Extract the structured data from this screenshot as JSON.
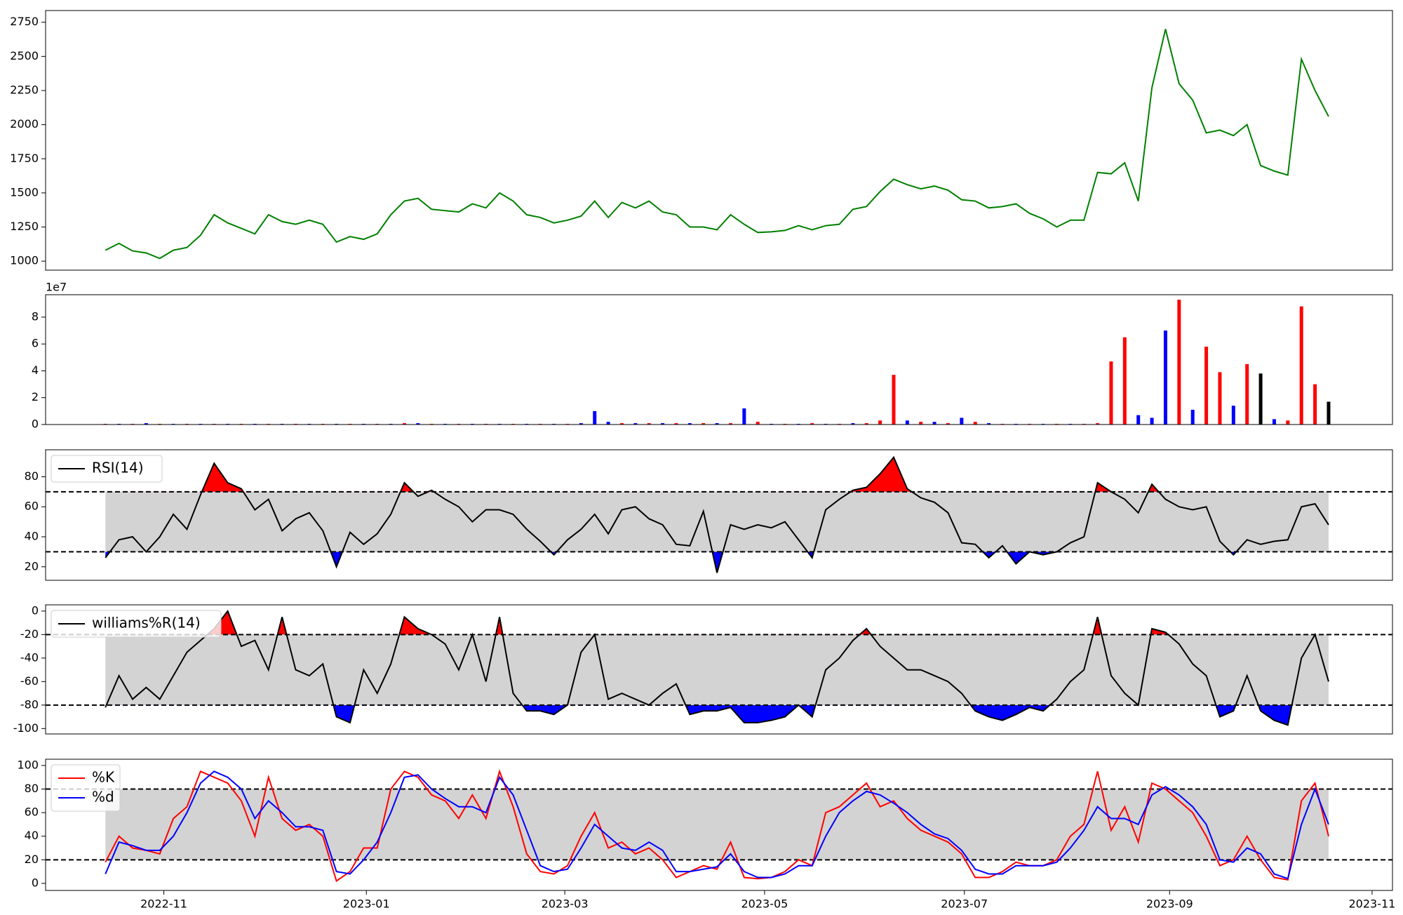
{
  "chart_data": [
    {
      "type": "line",
      "xlim": [
        -4.4,
        94.7
      ],
      "ylim": [
        934,
        2836
      ],
      "yticks": [
        1000,
        1250,
        1500,
        1750,
        2000,
        2250,
        2500,
        2750
      ],
      "series": [
        {
          "color": "#008000",
          "values": [
            1080,
            1130,
            1075,
            1060,
            1020,
            1080,
            1100,
            1190,
            1340,
            1280,
            1240,
            1200,
            1340,
            1290,
            1270,
            1300,
            1270,
            1140,
            1180,
            1160,
            1200,
            1340,
            1440,
            1460,
            1380,
            1370,
            1360,
            1420,
            1390,
            1500,
            1440,
            1340,
            1320,
            1280,
            1300,
            1330,
            1440,
            1320,
            1430,
            1390,
            1440,
            1360,
            1340,
            1250,
            1250,
            1230,
            1340,
            1270,
            1210,
            1215,
            1225,
            1260,
            1230,
            1260,
            1270,
            1380,
            1400,
            1510,
            1600,
            1560,
            1530,
            1550,
            1520,
            1450,
            1440,
            1390,
            1400,
            1420,
            1350,
            1310,
            1250,
            1300,
            1300,
            1650,
            1640,
            1720,
            1440,
            2270,
            2700,
            2300,
            2180,
            1940,
            1960,
            1920,
            2000,
            1700,
            1660,
            1630,
            2480,
            2250,
            2060
          ]
        }
      ]
    },
    {
      "type": "bar",
      "xlim": [
        -4.4,
        94.7
      ],
      "ylim": [
        0,
        9.67
      ],
      "yticks": [
        0,
        2,
        4,
        6,
        8
      ],
      "offset_label": "1e7",
      "values": [
        0.05,
        0.05,
        0.05,
        0.1,
        0.05,
        0.05,
        0.05,
        0.05,
        0.05,
        0.05,
        0.05,
        0.05,
        0.05,
        0.05,
        0.05,
        0.05,
        0.05,
        0.05,
        0.05,
        0.05,
        0.05,
        0.05,
        0.1,
        0.1,
        0.05,
        0.05,
        0.05,
        0.05,
        0.05,
        0.05,
        0.05,
        0.05,
        0.05,
        0.05,
        0.05,
        0.1,
        1.0,
        0.2,
        0.1,
        0.1,
        0.1,
        0.1,
        0.1,
        0.1,
        0.1,
        0.1,
        0.1,
        1.2,
        0.2,
        0.05,
        0.05,
        0.05,
        0.1,
        0.05,
        0.05,
        0.1,
        0.1,
        0.3,
        3.7,
        0.3,
        0.2,
        0.2,
        0.1,
        0.5,
        0.2,
        0.1,
        0.05,
        0.05,
        0.05,
        0.05,
        0.05,
        0.05,
        0.05,
        0.1,
        4.7,
        6.5,
        0.7,
        0.5,
        7.0,
        9.3,
        1.1,
        5.8,
        3.9,
        1.4,
        4.5,
        3.8,
        0.4,
        0.3,
        8.8,
        3.0,
        1.7
      ],
      "colors": [
        "red",
        "blue",
        "red",
        "blue",
        "red",
        "blue",
        "red",
        "blue",
        "red",
        "blue",
        "red",
        "blue",
        "red",
        "blue",
        "red",
        "blue",
        "red",
        "blue",
        "red",
        "blue",
        "red",
        "blue",
        "red",
        "blue",
        "red",
        "blue",
        "red",
        "blue",
        "red",
        "blue",
        "red",
        "blue",
        "red",
        "blue",
        "red",
        "blue",
        "blue",
        "blue",
        "red",
        "blue",
        "red",
        "blue",
        "red",
        "blue",
        "red",
        "blue",
        "red",
        "blue",
        "red",
        "blue",
        "red",
        "blue",
        "red",
        "blue",
        "red",
        "blue",
        "red",
        "red",
        "red",
        "blue",
        "red",
        "blue",
        "red",
        "blue",
        "red",
        "blue",
        "red",
        "blue",
        "red",
        "blue",
        "red",
        "blue",
        "red",
        "red",
        "red",
        "red",
        "blue",
        "blue",
        "blue",
        "red",
        "blue",
        "red",
        "red",
        "blue",
        "red",
        "black",
        "blue",
        "red",
        "red",
        "red",
        "black"
      ]
    },
    {
      "type": "line",
      "xlim": [
        -4.4,
        94.7
      ],
      "ylim": [
        11,
        98
      ],
      "yticks": [
        20,
        40,
        60,
        80
      ],
      "thresholds": [
        30,
        70
      ],
      "band_color": "#d3d3d3",
      "over_color": "red",
      "under_color": "blue",
      "legend": "upper left",
      "series": [
        {
          "name": "RSI(14)",
          "color": "#000000",
          "values": [
            26,
            38,
            40,
            30,
            40,
            55,
            45,
            68,
            89,
            76,
            72,
            58,
            65,
            44,
            52,
            56,
            44,
            20,
            43,
            35,
            42,
            55,
            76,
            67,
            71,
            65,
            60,
            50,
            58,
            58,
            55,
            45,
            37,
            28,
            38,
            45,
            55,
            42,
            58,
            60,
            52,
            48,
            35,
            34,
            57,
            16,
            48,
            45,
            48,
            46,
            50,
            38,
            26,
            58,
            65,
            71,
            73,
            82,
            93,
            72,
            66,
            63,
            56,
            36,
            35,
            26,
            34,
            22,
            30,
            28,
            30,
            36,
            40,
            76,
            70,
            65,
            56,
            75,
            65,
            60,
            58,
            60,
            37,
            28,
            38,
            35,
            37,
            38,
            60,
            62,
            48
          ]
        }
      ]
    },
    {
      "type": "line",
      "xlim": [
        -4.4,
        94.7
      ],
      "ylim": [
        -104.6,
        5.3
      ],
      "yticks": [
        -100,
        -80,
        -60,
        -40,
        -20,
        0
      ],
      "thresholds": [
        -80,
        -20
      ],
      "band_color": "#d3d3d3",
      "over_color": "red",
      "under_color": "blue",
      "legend": "upper left",
      "series": [
        {
          "name": "williams%R(14)",
          "color": "#000000",
          "values": [
            -82,
            -55,
            -75,
            -65,
            -75,
            -55,
            -35,
            -25,
            -15,
            0,
            -30,
            -25,
            -50,
            -5,
            -50,
            -55,
            -45,
            -90,
            -95,
            -50,
            -70,
            -45,
            -5,
            -15,
            -20,
            -28,
            -50,
            -20,
            -60,
            -5,
            -70,
            -85,
            -85,
            -88,
            -80,
            -35,
            -20,
            -75,
            -70,
            -75,
            -80,
            -70,
            -62,
            -88,
            -85,
            -85,
            -82,
            -95,
            -95,
            -93,
            -90,
            -80,
            -90,
            -50,
            -40,
            -25,
            -15,
            -30,
            -40,
            -50,
            -50,
            -55,
            -60,
            -70,
            -85,
            -90,
            -93,
            -88,
            -82,
            -85,
            -75,
            -60,
            -50,
            -5,
            -55,
            -70,
            -80,
            -15,
            -18,
            -28,
            -45,
            -55,
            -90,
            -85,
            -55,
            -85,
            -93,
            -97,
            -40,
            -20,
            -60
          ]
        }
      ]
    },
    {
      "type": "line",
      "xlim": [
        -4.4,
        94.7
      ],
      "ylim": [
        -6,
        105.3
      ],
      "yticks": [
        0,
        20,
        40,
        60,
        80,
        100
      ],
      "thresholds": [
        20,
        80
      ],
      "band_color": "#d3d3d3",
      "legend": "upper left",
      "xticks": [
        {
          "value": 4.3,
          "label": "2022-11"
        },
        {
          "value": 19.2,
          "label": "2023-01"
        },
        {
          "value": 33.8,
          "label": "2023-03"
        },
        {
          "value": 48.5,
          "label": "2023-05"
        },
        {
          "value": 63.2,
          "label": "2023-07"
        },
        {
          "value": 78.3,
          "label": "2023-09"
        },
        {
          "value": 93.2,
          "label": "2023-11"
        }
      ],
      "series": [
        {
          "name": "%K",
          "color": "#ff0000",
          "values": [
            18,
            40,
            30,
            28,
            25,
            55,
            65,
            95,
            90,
            85,
            70,
            40,
            90,
            55,
            45,
            50,
            40,
            2,
            10,
            30,
            30,
            80,
            95,
            90,
            75,
            70,
            55,
            75,
            55,
            95,
            65,
            25,
            10,
            8,
            15,
            40,
            60,
            30,
            35,
            25,
            30,
            20,
            5,
            10,
            15,
            12,
            35,
            5,
            4,
            5,
            10,
            20,
            15,
            60,
            65,
            75,
            85,
            65,
            70,
            55,
            45,
            40,
            35,
            25,
            5,
            5,
            10,
            18,
            15,
            15,
            20,
            40,
            50,
            95,
            45,
            65,
            35,
            85,
            80,
            70,
            60,
            40,
            15,
            20,
            40,
            20,
            5,
            3,
            70,
            85,
            40
          ]
        },
        {
          "name": "%d",
          "color": "#0000ff",
          "values": [
            8,
            35,
            32,
            28,
            28,
            40,
            60,
            85,
            95,
            90,
            80,
            55,
            70,
            60,
            48,
            48,
            45,
            10,
            8,
            20,
            35,
            60,
            90,
            92,
            80,
            72,
            65,
            65,
            60,
            90,
            75,
            45,
            15,
            10,
            12,
            30,
            50,
            40,
            30,
            28,
            35,
            28,
            10,
            10,
            12,
            14,
            25,
            10,
            5,
            5,
            8,
            15,
            15,
            40,
            60,
            70,
            78,
            75,
            68,
            60,
            50,
            42,
            38,
            28,
            12,
            8,
            8,
            15,
            15,
            15,
            18,
            30,
            45,
            65,
            55,
            55,
            50,
            75,
            82,
            75,
            65,
            50,
            20,
            18,
            30,
            25,
            8,
            4,
            50,
            80,
            50
          ]
        }
      ]
    }
  ]
}
